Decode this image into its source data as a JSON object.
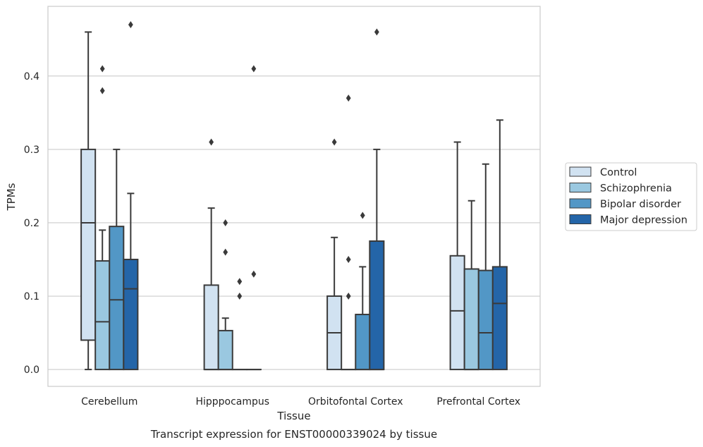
{
  "chart_data": {
    "type": "box",
    "title": "",
    "xlabel": "Tissue",
    "ylabel": "TPMs",
    "caption": "Transcript expression for ENST00000339024 by tissue",
    "ylim": [
      -0.023,
      0.495
    ],
    "yticks": [
      0.0,
      0.1,
      0.2,
      0.3,
      0.4
    ],
    "ytick_labels": [
      "0.0",
      "0.1",
      "0.2",
      "0.3",
      "0.4"
    ],
    "grid": "horizontal",
    "legend_position": "center-right outside",
    "categories": [
      "Cerebellum",
      "Hipppocampus",
      "Orbitofontal Cortex",
      "Prefrontal Cortex"
    ],
    "series": [
      {
        "name": "Control",
        "color": "#d1e2f1",
        "boxes": [
          {
            "whislo": 0.0,
            "q1": 0.04,
            "med": 0.2,
            "q3": 0.3,
            "whishi": 0.46,
            "fliers": []
          },
          {
            "whislo": 0.0,
            "q1": 0.0,
            "med": 0.0,
            "q3": 0.115,
            "whishi": 0.22,
            "fliers": [
              0.31
            ]
          },
          {
            "whislo": 0.0,
            "q1": 0.0,
            "med": 0.05,
            "q3": 0.1,
            "whishi": 0.18,
            "fliers": [
              0.31
            ]
          },
          {
            "whislo": 0.0,
            "q1": 0.0,
            "med": 0.08,
            "q3": 0.155,
            "whishi": 0.31,
            "fliers": []
          }
        ]
      },
      {
        "name": "Schizophrenia",
        "color": "#9ac8e0",
        "boxes": [
          {
            "whislo": 0.0,
            "q1": 0.0,
            "med": 0.065,
            "q3": 0.148,
            "whishi": 0.19,
            "fliers": [
              0.38,
              0.41
            ]
          },
          {
            "whislo": 0.0,
            "q1": 0.0,
            "med": 0.0,
            "q3": 0.053,
            "whishi": 0.07,
            "fliers": [
              0.16,
              0.2
            ]
          },
          {
            "whislo": 0.0,
            "q1": 0.0,
            "med": 0.0,
            "q3": 0.0,
            "whishi": 0.0,
            "fliers": [
              0.1,
              0.15,
              0.37
            ]
          },
          {
            "whislo": 0.0,
            "q1": 0.0,
            "med": 0.0,
            "q3": 0.137,
            "whishi": 0.23,
            "fliers": []
          }
        ]
      },
      {
        "name": "Bipolar disorder",
        "color": "#5297c6",
        "boxes": [
          {
            "whislo": 0.0,
            "q1": 0.0,
            "med": 0.095,
            "q3": 0.195,
            "whishi": 0.3,
            "fliers": []
          },
          {
            "whislo": 0.0,
            "q1": 0.0,
            "med": 0.0,
            "q3": 0.0,
            "whishi": 0.0,
            "fliers": [
              0.1,
              0.12
            ]
          },
          {
            "whislo": 0.0,
            "q1": 0.0,
            "med": 0.0,
            "q3": 0.075,
            "whishi": 0.14,
            "fliers": [
              0.21
            ]
          },
          {
            "whislo": 0.0,
            "q1": 0.0,
            "med": 0.05,
            "q3": 0.135,
            "whishi": 0.28,
            "fliers": []
          }
        ]
      },
      {
        "name": "Major depression",
        "color": "#2465a8",
        "boxes": [
          {
            "whislo": 0.0,
            "q1": 0.0,
            "med": 0.11,
            "q3": 0.15,
            "whishi": 0.24,
            "fliers": [
              0.47
            ]
          },
          {
            "whislo": 0.0,
            "q1": 0.0,
            "med": 0.0,
            "q3": 0.0,
            "whishi": 0.0,
            "fliers": [
              0.13,
              0.41
            ]
          },
          {
            "whislo": 0.0,
            "q1": 0.0,
            "med": 0.0,
            "q3": 0.175,
            "whishi": 0.3,
            "fliers": [
              0.46
            ]
          },
          {
            "whislo": 0.0,
            "q1": 0.0,
            "med": 0.09,
            "q3": 0.14,
            "whishi": 0.34,
            "fliers": []
          }
        ]
      }
    ]
  }
}
